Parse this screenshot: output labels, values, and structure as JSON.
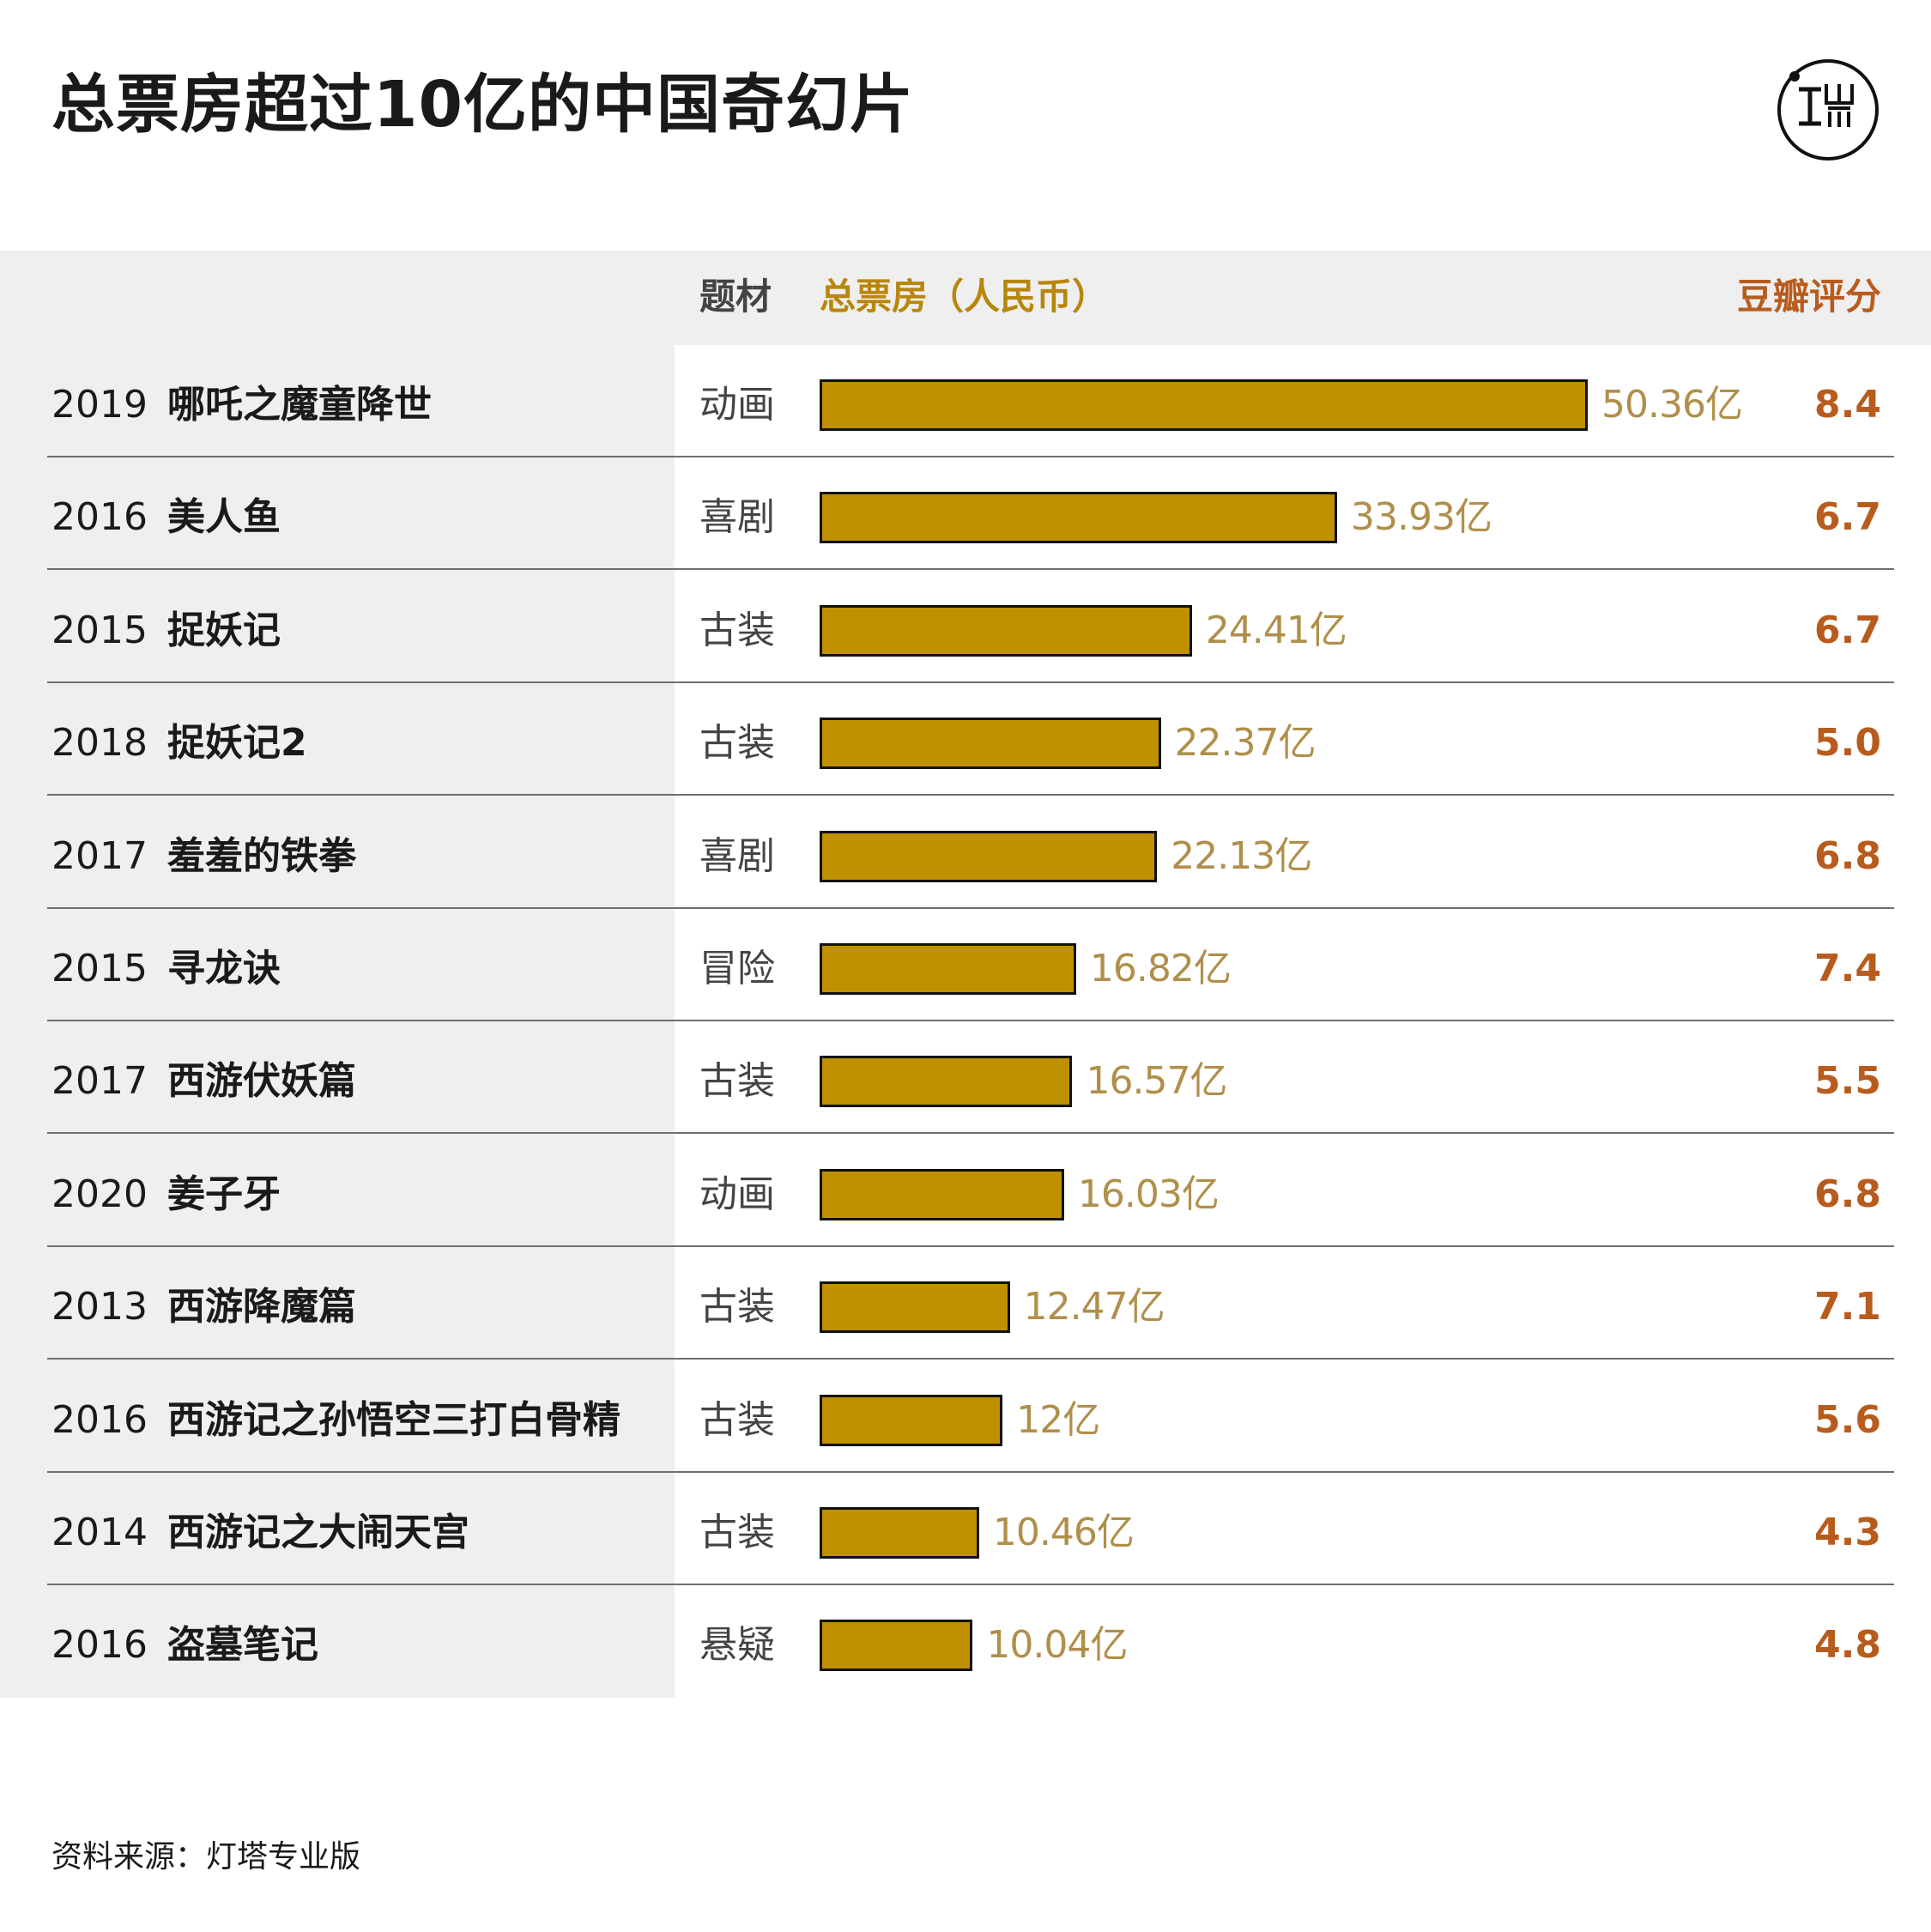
{
  "title": "总票房超过10亿的中国奇幻片",
  "header": {
    "genre": "题材",
    "box_office": "总票房（人民币）",
    "rating": "豆瓣评分"
  },
  "source": "资料来源：灯塔专业版",
  "colors": {
    "bar": "#bf9000",
    "value_text": "#b08f4a",
    "rating_text": "#b85c1e",
    "panel_bg": "#efefef"
  },
  "chart_data": {
    "type": "bar",
    "orientation": "horizontal",
    "xlim": [
      0,
      50.36
    ],
    "rows": [
      {
        "year": "2019",
        "movie": "哪吒之魔童降世",
        "genre": "动画",
        "value": 50.36,
        "value_label": "50.36亿",
        "rating": "8.4"
      },
      {
        "year": "2016",
        "movie": "美人鱼",
        "genre": "喜剧",
        "value": 33.93,
        "value_label": "33.93亿",
        "rating": "6.7"
      },
      {
        "year": "2015",
        "movie": "捉妖记",
        "genre": "古装",
        "value": 24.41,
        "value_label": "24.41亿",
        "rating": "6.7"
      },
      {
        "year": "2018",
        "movie": "捉妖记2",
        "genre": "古装",
        "value": 22.37,
        "value_label": "22.37亿",
        "rating": "5.0"
      },
      {
        "year": "2017",
        "movie": "羞羞的铁拳",
        "genre": "喜剧",
        "value": 22.13,
        "value_label": "22.13亿",
        "rating": "6.8"
      },
      {
        "year": "2015",
        "movie": "寻龙诀",
        "genre": "冒险",
        "value": 16.82,
        "value_label": "16.82亿",
        "rating": "7.4"
      },
      {
        "year": "2017",
        "movie": "西游伏妖篇",
        "genre": "古装",
        "value": 16.57,
        "value_label": "16.57亿",
        "rating": "5.5"
      },
      {
        "year": "2020",
        "movie": "姜子牙",
        "genre": "动画",
        "value": 16.03,
        "value_label": "16.03亿",
        "rating": "6.8"
      },
      {
        "year": "2013",
        "movie": "西游降魔篇",
        "genre": "古装",
        "value": 12.47,
        "value_label": "12.47亿",
        "rating": "7.1"
      },
      {
        "year": "2016",
        "movie": "西游记之孙悟空三打白骨精",
        "genre": "古装",
        "value": 12.0,
        "value_label": "12亿",
        "rating": "5.6"
      },
      {
        "year": "2014",
        "movie": "西游记之大闹天宫",
        "genre": "古装",
        "value": 10.46,
        "value_label": "10.46亿",
        "rating": "4.3"
      },
      {
        "year": "2016",
        "movie": "盗墓笔记",
        "genre": "悬疑",
        "value": 10.04,
        "value_label": "10.04亿",
        "rating": "4.8"
      }
    ]
  }
}
